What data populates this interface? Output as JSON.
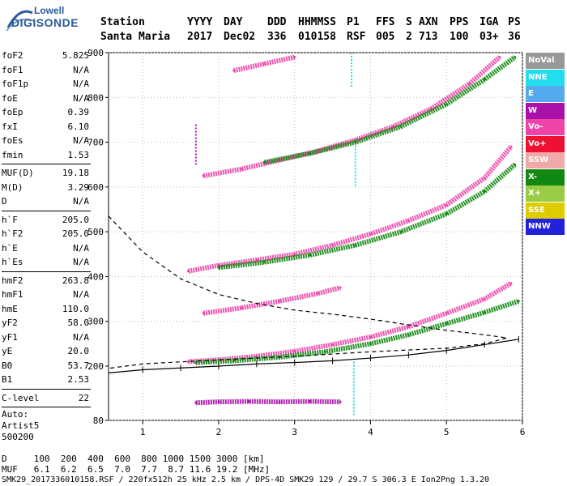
{
  "logo": {
    "line1": "Lowell",
    "line2": "DIGISONDE"
  },
  "header": {
    "labels": [
      "Station",
      "YYYY",
      "DAY",
      "DDD",
      "HHMMSS",
      "P1",
      "FFS",
      "S",
      "AXN",
      "PPS",
      "IGA",
      "PS"
    ],
    "values": [
      "Santa Maria",
      "2017",
      "Dec02",
      "336",
      "010158",
      "RSF",
      "005",
      "2",
      "713",
      "100",
      "03+",
      "36"
    ]
  },
  "params": [
    {
      "k": "foF2",
      "v": "5.825"
    },
    {
      "k": "foF1",
      "v": "N/A"
    },
    {
      "k": "foF1p",
      "v": "N/A"
    },
    {
      "k": "foE",
      "v": "N/A"
    },
    {
      "k": "foEp",
      "v": "0.39"
    },
    {
      "k": "fxI",
      "v": "6.10"
    },
    {
      "k": "foEs",
      "v": "N/A"
    },
    {
      "k": "fmin",
      "v": "1.53"
    },
    {
      "k": "MUF(D)",
      "v": "19.18",
      "sep": true
    },
    {
      "k": "M(D)",
      "v": "3.29"
    },
    {
      "k": "D",
      "v": "N/A"
    },
    {
      "k": "h`F",
      "v": "205.0",
      "sep": true
    },
    {
      "k": "h`F2",
      "v": "205.0"
    },
    {
      "k": "h`E",
      "v": "N/A"
    },
    {
      "k": "h`Es",
      "v": "N/A"
    },
    {
      "k": "hmF2",
      "v": "263.8",
      "sep": true
    },
    {
      "k": "hmF1",
      "v": "N/A"
    },
    {
      "k": "hmE",
      "v": "110.0"
    },
    {
      "k": "yF2",
      "v": "58.0"
    },
    {
      "k": "yF1",
      "v": "N/A"
    },
    {
      "k": "yE",
      "v": "20.0"
    },
    {
      "k": "B0",
      "v": "53.7"
    },
    {
      "k": "B1",
      "v": "2.53"
    },
    {
      "k": "C-level",
      "v": "22",
      "sep": true
    }
  ],
  "autoscale": [
    "Auto:",
    "Artist5",
    "500200"
  ],
  "legend": [
    {
      "label": "NoVal",
      "color": "#999999"
    },
    {
      "label": "NNE",
      "color": "#22ddee"
    },
    {
      "label": "E",
      "color": "#55aaee"
    },
    {
      "label": "W",
      "color": "#aa11aa"
    },
    {
      "label": "Vo-",
      "color": "#ee44aa"
    },
    {
      "label": "Vo+",
      "color": "#ee1133"
    },
    {
      "label": "SSW",
      "color": "#f0a8a8"
    },
    {
      "label": "X-",
      "color": "#118811"
    },
    {
      "label": "X+",
      "color": "#99cc44"
    },
    {
      "label": "SSE",
      "color": "#ddcc00"
    },
    {
      "label": "NNW",
      "color": "#2222dd"
    }
  ],
  "footer": {
    "d_line": "D     100  200  400  600  800 1000 1500 3000 [km]",
    "muf_line": "MUF   6.1  6.2  6.5  7.0  7.7  8.7 11.6 19.2 [MHz]",
    "info_line": "SMK29_2017336010158.RSF / 220fx512h 25 kHz 2.5 km / DPS-4D SMK29 129 / 29.7 S 306.3 E Ion2Png 1.3.20"
  },
  "chart_data": {
    "type": "scatter",
    "xlim": [
      0.55,
      6.0
    ],
    "ylim": [
      80,
      900
    ],
    "xticks": [
      1,
      2,
      3,
      4,
      5,
      6
    ],
    "yticks": [
      80,
      200,
      300,
      400,
      500,
      600,
      700,
      800,
      900
    ],
    "grid": true,
    "series": [
      {
        "color": "#ee44aa",
        "points": [
          [
            1.6,
            210
          ],
          [
            2.0,
            214
          ],
          [
            2.5,
            222
          ],
          [
            3.0,
            233
          ],
          [
            3.5,
            248
          ],
          [
            4.0,
            265
          ],
          [
            4.5,
            288
          ],
          [
            5.0,
            318
          ],
          [
            5.5,
            350
          ],
          [
            5.85,
            385
          ]
        ]
      },
      {
        "color": "#118811",
        "points": [
          [
            1.7,
            208
          ],
          [
            2.2,
            212
          ],
          [
            2.8,
            220
          ],
          [
            3.4,
            232
          ],
          [
            4.0,
            250
          ],
          [
            4.5,
            270
          ],
          [
            5.0,
            295
          ],
          [
            5.5,
            320
          ],
          [
            5.95,
            345
          ]
        ]
      },
      {
        "color": "#ee44aa",
        "points": [
          [
            1.6,
            412
          ],
          [
            2.0,
            425
          ],
          [
            2.5,
            437
          ],
          [
            3.0,
            450
          ],
          [
            3.5,
            470
          ],
          [
            4.0,
            495
          ],
          [
            4.5,
            525
          ],
          [
            5.0,
            560
          ],
          [
            5.5,
            620
          ],
          [
            5.85,
            690
          ]
        ]
      },
      {
        "color": "#118811",
        "points": [
          [
            2.0,
            420
          ],
          [
            2.6,
            432
          ],
          [
            3.2,
            448
          ],
          [
            3.8,
            470
          ],
          [
            4.4,
            500
          ],
          [
            5.0,
            540
          ],
          [
            5.5,
            590
          ],
          [
            5.9,
            650
          ]
        ]
      },
      {
        "color": "#ee44aa",
        "points": [
          [
            1.8,
            625
          ],
          [
            2.3,
            640
          ],
          [
            2.8,
            660
          ],
          [
            3.3,
            680
          ],
          [
            3.8,
            705
          ],
          [
            4.3,
            735
          ],
          [
            4.8,
            775
          ],
          [
            5.3,
            830
          ],
          [
            5.7,
            890
          ]
        ]
      },
      {
        "color": "#118811",
        "points": [
          [
            2.6,
            655
          ],
          [
            3.2,
            675
          ],
          [
            3.8,
            700
          ],
          [
            4.4,
            735
          ],
          [
            5.0,
            785
          ],
          [
            5.5,
            840
          ],
          [
            5.9,
            890
          ]
        ]
      },
      {
        "color": "#ee44aa",
        "points": [
          [
            1.8,
            318
          ],
          [
            2.3,
            330
          ],
          [
            2.8,
            345
          ],
          [
            3.3,
            362
          ],
          [
            3.6,
            375
          ]
        ]
      },
      {
        "color": "#ee44aa",
        "points": [
          [
            2.2,
            860
          ],
          [
            2.6,
            875
          ],
          [
            3.0,
            890
          ]
        ]
      },
      {
        "color": "#aa11aa",
        "points": [
          [
            1.7,
            119
          ],
          [
            2.0,
            121
          ],
          [
            2.4,
            122
          ],
          [
            2.8,
            121
          ],
          [
            3.2,
            122
          ],
          [
            3.6,
            121
          ]
        ]
      }
    ],
    "profile_dashed": [
      [
        0.55,
        535
      ],
      [
        1.0,
        455
      ],
      [
        1.5,
        395
      ],
      [
        2.0,
        360
      ],
      [
        2.5,
        340
      ],
      [
        3.0,
        325
      ],
      [
        3.5,
        316
      ],
      [
        4.0,
        305
      ],
      [
        4.5,
        292
      ],
      [
        5.0,
        280
      ],
      [
        5.5,
        270
      ],
      [
        5.8,
        263
      ],
      [
        5.5,
        250
      ],
      [
        5.0,
        240
      ],
      [
        4.0,
        232
      ],
      [
        3.0,
        222
      ],
      [
        2.0,
        214
      ],
      [
        1.0,
        205
      ],
      [
        0.55,
        195
      ]
    ],
    "profile_solid": [
      [
        0.55,
        185
      ],
      [
        1.0,
        192
      ],
      [
        1.5,
        196
      ],
      [
        2.0,
        200
      ],
      [
        2.5,
        205
      ],
      [
        3.0,
        208
      ],
      [
        3.5,
        212
      ],
      [
        4.0,
        218
      ],
      [
        4.5,
        225
      ],
      [
        5.0,
        235
      ],
      [
        5.5,
        248
      ],
      [
        5.95,
        260
      ]
    ],
    "vertical_streaks": [
      {
        "x": 3.75,
        "y0": 820,
        "y1": 900,
        "color": "#22ddee"
      },
      {
        "x": 3.8,
        "y0": 600,
        "y1": 700,
        "color": "#22ddee"
      },
      {
        "x": 3.78,
        "y0": 90,
        "y1": 210,
        "color": "#22ddee"
      },
      {
        "x": 1.7,
        "y0": 650,
        "y1": 740,
        "color": "#aa11aa"
      }
    ]
  }
}
